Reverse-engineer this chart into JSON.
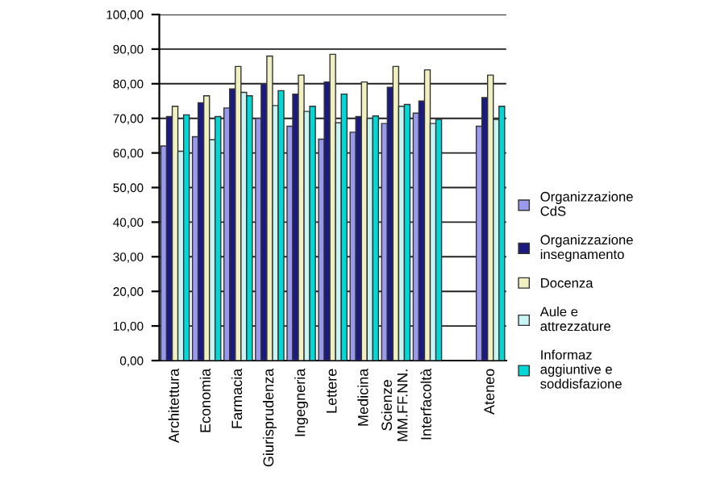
{
  "chart_data": {
    "type": "bar",
    "categories": [
      "Architettura",
      "Economia",
      "Farmacia",
      "Giurisprudenza",
      "Ingegneria",
      "Lettere",
      "Medicina",
      "Scienze MM.FF.NN.",
      "Interfacoltà",
      null,
      "Ateneo"
    ],
    "series": [
      {
        "name": "Organizzazione CdS",
        "color": "#9999ee",
        "values": [
          62,
          64.7,
          73,
          70,
          67.7,
          64,
          66,
          68.5,
          71.5,
          null,
          67.7
        ]
      },
      {
        "name": "Organizzazione insegnamento",
        "color": "#1a1a80",
        "values": [
          70.5,
          74.5,
          78.5,
          80,
          77,
          80.5,
          70.5,
          79,
          75,
          null,
          76
        ]
      },
      {
        "name": "Docenza",
        "color": "#f0f0c0",
        "values": [
          73.5,
          76.5,
          85,
          88,
          82.5,
          88.5,
          80.5,
          85,
          84,
          null,
          82.5
        ]
      },
      {
        "name": "Aule e attrezzature",
        "color": "#c8f4f4",
        "values": [
          60.5,
          63.8,
          77.5,
          73.7,
          72,
          68.7,
          70,
          73.5,
          68.5,
          null,
          69.7
        ]
      },
      {
        "name": "Informaz aggiuntive e soddisfazione",
        "color": "#00d8d8",
        "values": [
          71,
          70.5,
          76.5,
          78,
          73.5,
          77,
          70.7,
          74,
          69.7,
          null,
          73.5
        ]
      }
    ],
    "ylim": [
      0,
      100
    ],
    "yticks": [
      {
        "value": 0,
        "label": "0,00"
      },
      {
        "value": 10,
        "label": "10,00"
      },
      {
        "value": 20,
        "label": "20,00"
      },
      {
        "value": 30,
        "label": "30,00"
      },
      {
        "value": 40,
        "label": "40,00"
      },
      {
        "value": 50,
        "label": "50,00"
      },
      {
        "value": 60,
        "label": "60,00"
      },
      {
        "value": 70,
        "label": "70,00"
      },
      {
        "value": 80,
        "label": "80,00"
      },
      {
        "value": 90,
        "label": "90,00"
      },
      {
        "value": 100,
        "label": "100,00"
      }
    ],
    "grid": "y",
    "legend": "right"
  }
}
